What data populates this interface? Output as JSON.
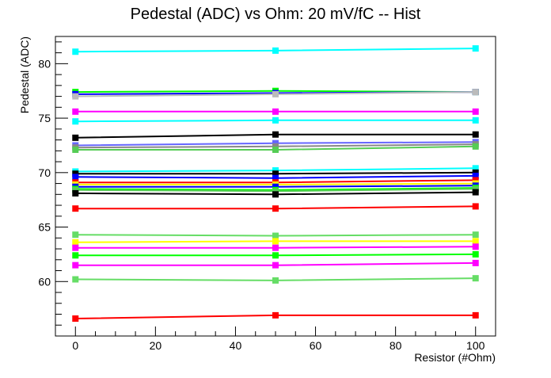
{
  "chart_data": {
    "type": "line",
    "title": "Pedestal (ADC) vs Ohm: 20 mV/fC -- Hist",
    "xlabel": "Resistor (#Ohm)",
    "ylabel": "Pedestal (ADC)",
    "xlim": [
      -5,
      105
    ],
    "ylim": [
      55,
      82.5
    ],
    "x_ticks": [
      "0",
      "20",
      "40",
      "60",
      "80",
      "100"
    ],
    "y_ticks": [
      "60",
      "65",
      "70",
      "75",
      "80"
    ],
    "grid": false,
    "legend": "none",
    "x": [
      0,
      50,
      100
    ],
    "series": [
      {
        "color": "#00ffff",
        "values": [
          81.1,
          81.2,
          81.4
        ]
      },
      {
        "color": "#00ff00",
        "values": [
          77.4,
          77.5,
          77.4
        ]
      },
      {
        "color": "#0000ff",
        "values": [
          77.2,
          77.3,
          77.4
        ]
      },
      {
        "color": "#bbbbbb",
        "values": [
          77.0,
          77.2,
          77.4
        ]
      },
      {
        "color": "#ff00ff",
        "values": [
          75.6,
          75.6,
          75.6
        ]
      },
      {
        "color": "#00ffff",
        "values": [
          74.7,
          74.8,
          74.8
        ]
      },
      {
        "color": "#000000",
        "values": [
          73.2,
          73.5,
          73.5
        ]
      },
      {
        "color": "#6666ff",
        "values": [
          72.5,
          72.7,
          72.8
        ]
      },
      {
        "color": "#888888",
        "values": [
          72.3,
          72.4,
          72.6
        ]
      },
      {
        "color": "#55cc55",
        "values": [
          72.1,
          72.1,
          72.4
        ]
      },
      {
        "color": "#00ffff",
        "values": [
          70.1,
          70.2,
          70.4
        ]
      },
      {
        "color": "#000000",
        "values": [
          69.9,
          69.9,
          70.0
        ]
      },
      {
        "color": "#0000ff",
        "values": [
          69.6,
          69.5,
          69.7
        ]
      },
      {
        "color": "#ff0000",
        "values": [
          69.1,
          69.1,
          69.3
        ]
      },
      {
        "color": "#ffff00",
        "values": [
          68.9,
          68.9,
          69.0
        ]
      },
      {
        "color": "#0000ff",
        "values": [
          68.7,
          68.7,
          68.8
        ]
      },
      {
        "color": "#00ff00",
        "values": [
          68.5,
          68.4,
          68.6
        ]
      },
      {
        "color": "#55cc55",
        "values": [
          68.4,
          68.3,
          68.5
        ]
      },
      {
        "color": "#000000",
        "values": [
          68.1,
          68.0,
          68.2
        ]
      },
      {
        "color": "#ff0000",
        "values": [
          66.7,
          66.7,
          66.9
        ]
      },
      {
        "color": "#66dd66",
        "values": [
          64.3,
          64.2,
          64.3
        ]
      },
      {
        "color": "#ffff00",
        "values": [
          63.6,
          63.7,
          63.7
        ]
      },
      {
        "color": "#ff00ff",
        "values": [
          63.1,
          63.1,
          63.2
        ]
      },
      {
        "color": "#00ff00",
        "values": [
          62.4,
          62.4,
          62.5
        ]
      },
      {
        "color": "#ff00ff",
        "values": [
          61.5,
          61.5,
          61.7
        ]
      },
      {
        "color": "#66dd66",
        "values": [
          60.2,
          60.1,
          60.3
        ]
      },
      {
        "color": "#ff0000",
        "values": [
          56.6,
          56.9,
          56.9
        ]
      }
    ]
  }
}
